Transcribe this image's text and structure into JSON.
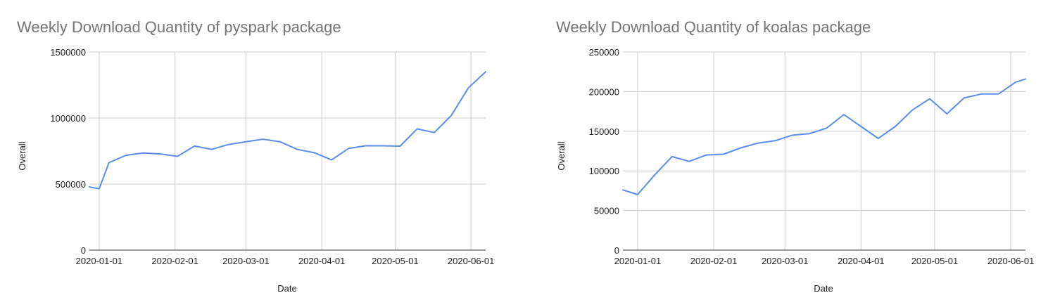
{
  "colors": {
    "series": "#5b8def",
    "grid": "#cccccc",
    "title": "#757575"
  },
  "chart_data": [
    {
      "type": "line",
      "title": "Weekly Download Quantity of pyspark package",
      "xlabel": "Date",
      "ylabel": "Overall",
      "ylim": [
        0,
        1500000
      ],
      "yticks": [
        "0",
        "500000",
        "1000000",
        "1500000"
      ],
      "xticks": [
        "2020-01-01",
        "2020-02-01",
        "2020-03-01",
        "2020-04-01",
        "2020-05-01",
        "2020-06-01"
      ],
      "xlim": [
        "2019-12-28",
        "2020-06-07"
      ],
      "grid": true,
      "series": [
        {
          "x": [
            "2019-12-28",
            "2020-01-01",
            "2020-01-05",
            "2020-01-12",
            "2020-01-19",
            "2020-01-26",
            "2020-02-02",
            "2020-02-09",
            "2020-02-16",
            "2020-02-23",
            "2020-03-01",
            "2020-03-08",
            "2020-03-15",
            "2020-03-22",
            "2020-03-29",
            "2020-04-05",
            "2020-04-12",
            "2020-04-19",
            "2020-04-26",
            "2020-05-03",
            "2020-05-10",
            "2020-05-17",
            "2020-05-24",
            "2020-05-31",
            "2020-06-07"
          ],
          "values": [
            478000,
            465000,
            662000,
            718000,
            735000,
            728000,
            710000,
            788000,
            763000,
            800000,
            820000,
            840000,
            820000,
            762000,
            737000,
            683000,
            770000,
            790000,
            790000,
            787000,
            918000,
            890000,
            1020000,
            1230000,
            1350000
          ]
        }
      ]
    },
    {
      "type": "line",
      "title": "Weekly Download Quantity of koalas package",
      "xlabel": "Date",
      "ylabel": "Overall",
      "ylim": [
        0,
        250000
      ],
      "yticks": [
        "0",
        "50000",
        "100000",
        "150000",
        "200000",
        "250000"
      ],
      "xticks": [
        "2020-01-01",
        "2020-02-01",
        "2020-03-01",
        "2020-04-01",
        "2020-05-01",
        "2020-06-01"
      ],
      "xlim": [
        "2019-12-26",
        "2020-06-07"
      ],
      "grid": true,
      "series": [
        {
          "x": [
            "2019-12-26",
            "2020-01-01",
            "2020-01-08",
            "2020-01-15",
            "2020-01-22",
            "2020-01-29",
            "2020-02-05",
            "2020-02-12",
            "2020-02-19",
            "2020-02-26",
            "2020-03-04",
            "2020-03-11",
            "2020-03-18",
            "2020-03-25",
            "2020-04-01",
            "2020-04-08",
            "2020-04-15",
            "2020-04-22",
            "2020-04-29",
            "2020-05-06",
            "2020-05-13",
            "2020-05-20",
            "2020-05-27",
            "2020-06-03",
            "2020-06-07"
          ],
          "values": [
            76000,
            70000,
            95000,
            118000,
            112000,
            120000,
            121000,
            129000,
            135000,
            138000,
            145000,
            147000,
            154000,
            171000,
            156000,
            141000,
            156000,
            177000,
            191000,
            172000,
            192000,
            197000,
            197000,
            212000,
            216000
          ]
        }
      ]
    }
  ]
}
